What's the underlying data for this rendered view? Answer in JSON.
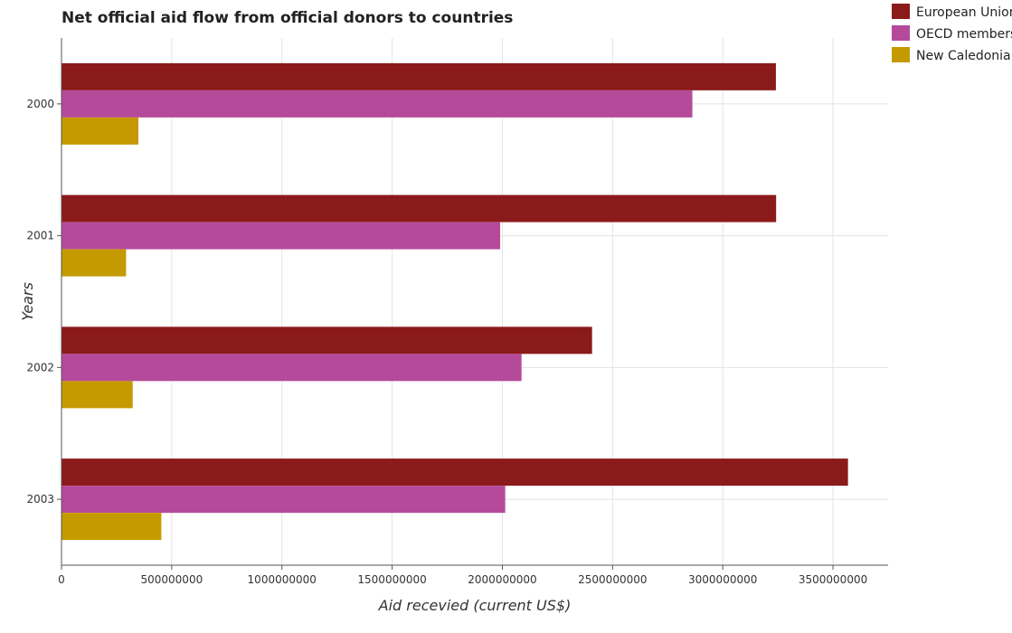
{
  "chart_data": {
    "type": "bar",
    "orientation": "horizontal",
    "title": "Net official aid flow from official donors to countries",
    "xlabel": "Aid recevied (current US$)",
    "ylabel": "Years",
    "categories": [
      "2000",
      "2001",
      "2002",
      "2003"
    ],
    "series": [
      {
        "name": "European Union",
        "color": "#8b1a1a",
        "values": [
          3241000000,
          3242000000,
          2407000000,
          3568000000
        ]
      },
      {
        "name": "OECD members",
        "color": "#b54a9a",
        "values": [
          2862000000,
          1990000000,
          2087000000,
          2013000000
        ]
      },
      {
        "name": "New Caledonia",
        "color": "#c49a00",
        "values": [
          349000000,
          293000000,
          323000000,
          453000000
        ]
      }
    ],
    "xlim": [
      0,
      3750000000
    ],
    "xticks": [
      {
        "value": 0,
        "label": "0"
      },
      {
        "value": 500000000,
        "label": "500000000"
      },
      {
        "value": 1000000000,
        "label": "1000000000"
      },
      {
        "value": 1500000000,
        "label": "1500000000"
      },
      {
        "value": 2000000000,
        "label": "2000000000"
      },
      {
        "value": 2500000000,
        "label": "2500000000"
      },
      {
        "value": 3000000000,
        "label": "3000000000"
      },
      {
        "value": 3500000000,
        "label": "3500000000"
      }
    ],
    "grid": true,
    "legend_position": "top-right"
  }
}
